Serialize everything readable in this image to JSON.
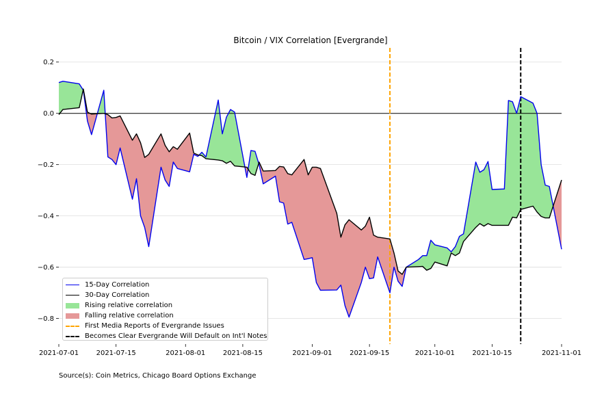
{
  "colors": {
    "rising": "#98e598",
    "falling": "#e59898",
    "line15": "#0000ee",
    "line30": "#000000",
    "media": "#ffa500",
    "default": "#000000",
    "grid": "#dddddd"
  },
  "source": "Source(s): Coin Metrics, Chicago Board Options Exchange",
  "chart_data": {
    "type": "line",
    "title": "Bitcoin / VIX Correlation [Evergrande]",
    "xlabel": "",
    "ylabel": "",
    "xlim": [
      "2021-07-01",
      "2021-11-01"
    ],
    "ylim": [
      -0.9,
      0.25
    ],
    "grid": "horizontal",
    "legend_position": "bottom-left",
    "x_ticks": [
      "2021-07-01",
      "2021-07-15",
      "2021-08-01",
      "2021-08-15",
      "2021-09-01",
      "2021-09-15",
      "2021-10-01",
      "2021-10-15",
      "2021-11-01"
    ],
    "y_ticks": [
      0.2,
      0.0,
      -0.2,
      -0.4,
      -0.6,
      -0.8
    ],
    "y_tick_labels": [
      "0.2",
      "0.0",
      "−0.2",
      "−0.4",
      "−0.6",
      "−0.8"
    ],
    "reference_line": 0.0,
    "series": [
      {
        "name": "15-Day Correlation",
        "points": [
          [
            "2021-07-01",
            0.12
          ],
          [
            "2021-07-02",
            0.125
          ],
          [
            "2021-07-06",
            0.115
          ],
          [
            "2021-07-07",
            0.09
          ],
          [
            "2021-07-08",
            -0.03
          ],
          [
            "2021-07-09",
            -0.083
          ],
          [
            "2021-07-12",
            0.09
          ],
          [
            "2021-07-13",
            -0.17
          ],
          [
            "2021-07-14",
            -0.18
          ],
          [
            "2021-07-15",
            -0.2
          ],
          [
            "2021-07-16",
            -0.135
          ],
          [
            "2021-07-19",
            -0.335
          ],
          [
            "2021-07-20",
            -0.255
          ],
          [
            "2021-07-21",
            -0.4
          ],
          [
            "2021-07-22",
            -0.445
          ],
          [
            "2021-07-23",
            -0.52
          ],
          [
            "2021-07-26",
            -0.21
          ],
          [
            "2021-07-27",
            -0.26
          ],
          [
            "2021-07-28",
            -0.285
          ],
          [
            "2021-07-29",
            -0.19
          ],
          [
            "2021-07-30",
            -0.215
          ],
          [
            "2021-08-02",
            -0.228
          ],
          [
            "2021-08-03",
            -0.16
          ],
          [
            "2021-08-04",
            -0.168
          ],
          [
            "2021-08-05",
            -0.152
          ],
          [
            "2021-08-06",
            -0.17
          ],
          [
            "2021-08-09",
            0.052
          ],
          [
            "2021-08-10",
            -0.08
          ],
          [
            "2021-08-11",
            -0.015
          ],
          [
            "2021-08-12",
            0.015
          ],
          [
            "2021-08-13",
            0.005
          ],
          [
            "2021-08-16",
            -0.25
          ],
          [
            "2021-08-17",
            -0.145
          ],
          [
            "2021-08-18",
            -0.148
          ],
          [
            "2021-08-19",
            -0.2
          ],
          [
            "2021-08-20",
            -0.275
          ],
          [
            "2021-08-23",
            -0.245
          ],
          [
            "2021-08-24",
            -0.345
          ],
          [
            "2021-08-25",
            -0.35
          ],
          [
            "2021-08-26",
            -0.432
          ],
          [
            "2021-08-27",
            -0.425
          ],
          [
            "2021-08-30",
            -0.57
          ],
          [
            "2021-08-31",
            -0.567
          ],
          [
            "2021-09-01",
            -0.563
          ],
          [
            "2021-09-02",
            -0.66
          ],
          [
            "2021-09-03",
            -0.69
          ],
          [
            "2021-09-07",
            -0.689
          ],
          [
            "2021-09-08",
            -0.67
          ],
          [
            "2021-09-09",
            -0.75
          ],
          [
            "2021-09-10",
            -0.795
          ],
          [
            "2021-09-13",
            -0.66
          ],
          [
            "2021-09-14",
            -0.6
          ],
          [
            "2021-09-15",
            -0.645
          ],
          [
            "2021-09-16",
            -0.642
          ],
          [
            "2021-09-17",
            -0.56
          ],
          [
            "2021-09-20",
            -0.7
          ],
          [
            "2021-09-21",
            -0.6
          ],
          [
            "2021-09-22",
            -0.655
          ],
          [
            "2021-09-23",
            -0.675
          ],
          [
            "2021-09-24",
            -0.6
          ],
          [
            "2021-09-27",
            -0.57
          ],
          [
            "2021-09-28",
            -0.555
          ],
          [
            "2021-09-29",
            -0.555
          ],
          [
            "2021-09-30",
            -0.495
          ],
          [
            "2021-10-01",
            -0.513
          ],
          [
            "2021-10-04",
            -0.525
          ],
          [
            "2021-10-05",
            -0.54
          ],
          [
            "2021-10-06",
            -0.52
          ],
          [
            "2021-10-07",
            -0.48
          ],
          [
            "2021-10-08",
            -0.47
          ],
          [
            "2021-10-11",
            -0.19
          ],
          [
            "2021-10-12",
            -0.23
          ],
          [
            "2021-10-13",
            -0.22
          ],
          [
            "2021-10-14",
            -0.188
          ],
          [
            "2021-10-15",
            -0.297
          ],
          [
            "2021-10-18",
            -0.295
          ],
          [
            "2021-10-19",
            0.05
          ],
          [
            "2021-10-20",
            0.045
          ],
          [
            "2021-10-21",
            0.0
          ],
          [
            "2021-10-22",
            0.065
          ],
          [
            "2021-10-25",
            0.04
          ],
          [
            "2021-10-26",
            0.0
          ],
          [
            "2021-10-27",
            -0.2
          ],
          [
            "2021-10-28",
            -0.28
          ],
          [
            "2021-10-29",
            -0.285
          ],
          [
            "2021-11-01",
            -0.53
          ]
        ]
      },
      {
        "name": "30-Day Correlation",
        "points": [
          [
            "2021-07-01",
            -0.005
          ],
          [
            "2021-07-02",
            0.015
          ],
          [
            "2021-07-06",
            0.022
          ],
          [
            "2021-07-07",
            0.095
          ],
          [
            "2021-07-08",
            0.005
          ],
          [
            "2021-07-09",
            -0.003
          ],
          [
            "2021-07-12",
            0.0
          ],
          [
            "2021-07-13",
            -0.005
          ],
          [
            "2021-07-14",
            -0.018
          ],
          [
            "2021-07-15",
            -0.016
          ],
          [
            "2021-07-16",
            -0.01
          ],
          [
            "2021-07-19",
            -0.105
          ],
          [
            "2021-07-20",
            -0.08
          ],
          [
            "2021-07-21",
            -0.115
          ],
          [
            "2021-07-22",
            -0.172
          ],
          [
            "2021-07-23",
            -0.16
          ],
          [
            "2021-07-26",
            -0.08
          ],
          [
            "2021-07-27",
            -0.125
          ],
          [
            "2021-07-28",
            -0.15
          ],
          [
            "2021-07-29",
            -0.13
          ],
          [
            "2021-07-30",
            -0.14
          ],
          [
            "2021-08-02",
            -0.077
          ],
          [
            "2021-08-03",
            -0.155
          ],
          [
            "2021-08-04",
            -0.162
          ],
          [
            "2021-08-05",
            -0.165
          ],
          [
            "2021-08-06",
            -0.177
          ],
          [
            "2021-08-09",
            -0.182
          ],
          [
            "2021-08-10",
            -0.185
          ],
          [
            "2021-08-11",
            -0.195
          ],
          [
            "2021-08-12",
            -0.187
          ],
          [
            "2021-08-13",
            -0.205
          ],
          [
            "2021-08-16",
            -0.21
          ],
          [
            "2021-08-17",
            -0.235
          ],
          [
            "2021-08-18",
            -0.242
          ],
          [
            "2021-08-19",
            -0.19
          ],
          [
            "2021-08-20",
            -0.225
          ],
          [
            "2021-08-23",
            -0.223
          ],
          [
            "2021-08-24",
            -0.207
          ],
          [
            "2021-08-25",
            -0.209
          ],
          [
            "2021-08-26",
            -0.235
          ],
          [
            "2021-08-27",
            -0.24
          ],
          [
            "2021-08-30",
            -0.18
          ],
          [
            "2021-08-31",
            -0.24
          ],
          [
            "2021-09-01",
            -0.21
          ],
          [
            "2021-09-02",
            -0.21
          ],
          [
            "2021-09-03",
            -0.215
          ],
          [
            "2021-09-07",
            -0.39
          ],
          [
            "2021-09-08",
            -0.483
          ],
          [
            "2021-09-09",
            -0.435
          ],
          [
            "2021-09-10",
            -0.415
          ],
          [
            "2021-09-13",
            -0.455
          ],
          [
            "2021-09-14",
            -0.44
          ],
          [
            "2021-09-15",
            -0.405
          ],
          [
            "2021-09-16",
            -0.475
          ],
          [
            "2021-09-17",
            -0.483
          ],
          [
            "2021-09-20",
            -0.49
          ],
          [
            "2021-09-21",
            -0.545
          ],
          [
            "2021-09-22",
            -0.615
          ],
          [
            "2021-09-23",
            -0.628
          ],
          [
            "2021-09-24",
            -0.6
          ],
          [
            "2021-09-27",
            -0.598
          ],
          [
            "2021-09-28",
            -0.597
          ],
          [
            "2021-09-29",
            -0.612
          ],
          [
            "2021-09-30",
            -0.605
          ],
          [
            "2021-10-01",
            -0.58
          ],
          [
            "2021-10-04",
            -0.595
          ],
          [
            "2021-10-05",
            -0.545
          ],
          [
            "2021-10-06",
            -0.555
          ],
          [
            "2021-10-07",
            -0.545
          ],
          [
            "2021-10-08",
            -0.5
          ],
          [
            "2021-10-11",
            -0.445
          ],
          [
            "2021-10-12",
            -0.43
          ],
          [
            "2021-10-13",
            -0.44
          ],
          [
            "2021-10-14",
            -0.43
          ],
          [
            "2021-10-15",
            -0.437
          ],
          [
            "2021-10-18",
            -0.437
          ],
          [
            "2021-10-19",
            -0.437
          ],
          [
            "2021-10-20",
            -0.405
          ],
          [
            "2021-10-21",
            -0.408
          ],
          [
            "2021-10-22",
            -0.375
          ],
          [
            "2021-10-25",
            -0.362
          ],
          [
            "2021-10-26",
            -0.385
          ],
          [
            "2021-10-27",
            -0.402
          ],
          [
            "2021-10-28",
            -0.408
          ],
          [
            "2021-10-29",
            -0.408
          ],
          [
            "2021-11-01",
            -0.26
          ]
        ]
      }
    ],
    "events": [
      {
        "name": "First Media Reports of Evergrande Issues",
        "date": "2021-09-20",
        "style": "dashed",
        "color": "#ffa500"
      },
      {
        "name": "Becomes Clear Evergrande Will Default on Int'l Notes",
        "date": "2021-10-22",
        "style": "dashed",
        "color": "#000000"
      }
    ],
    "fills": [
      {
        "name": "Rising relative correlation",
        "condition": "15-Day above 30-Day",
        "color": "#98e598"
      },
      {
        "name": "Falling relative correlation",
        "condition": "15-Day below 30-Day",
        "color": "#e59898"
      }
    ]
  },
  "legend": [
    {
      "label": "15-Day Correlation",
      "kind": "line",
      "color": "#0000ee"
    },
    {
      "label": "30-Day Correlation",
      "kind": "line",
      "color": "#000000"
    },
    {
      "label": "Rising relative correlation",
      "kind": "patch",
      "color": "#98e598"
    },
    {
      "label": "Falling relative correlation",
      "kind": "patch",
      "color": "#e59898"
    },
    {
      "label": "First Media Reports of Evergrande Issues",
      "kind": "dash",
      "color": "#ffa500"
    },
    {
      "label": "Becomes Clear Evergrande Will Default on Int'l Notes",
      "kind": "dash",
      "color": "#000000"
    }
  ]
}
